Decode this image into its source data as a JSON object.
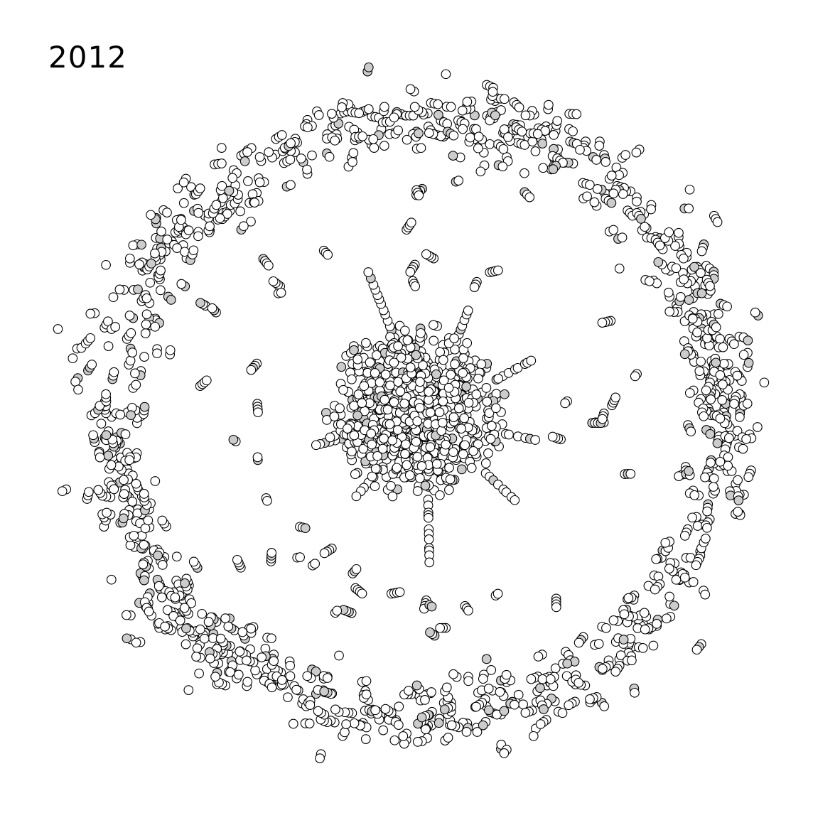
{
  "year": "2012",
  "colors": {
    "node_fill": "#ffffff",
    "node_fill_alt": "#cccccc",
    "node_stroke": "#000000",
    "background": "#ffffff"
  }
}
